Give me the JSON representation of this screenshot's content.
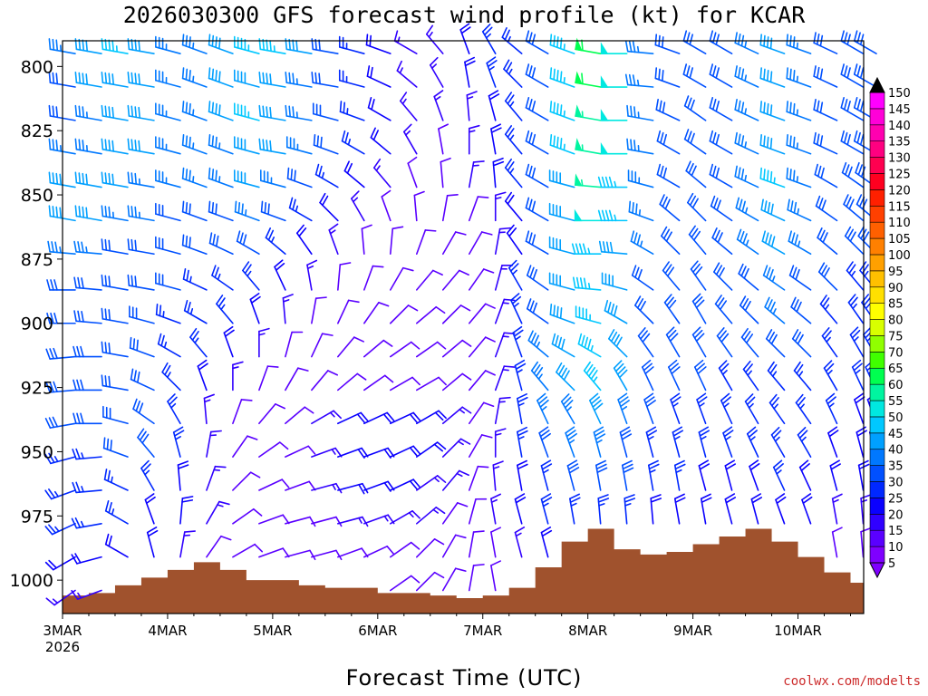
{
  "title": "2026030300 GFS forecast wind profile (kt) for KCAR",
  "credit": "coolwx.com/modelts",
  "chart_data": {
    "type": "wind-barb-profile",
    "title": "2026030300 GFS forecast wind profile (kt) for KCAR",
    "xlabel": "Forecast Time (UTC)",
    "ylabel": "",
    "x_start": "2026-03-03T00:00Z",
    "x_end": "2026-03-10T15:00Z",
    "x_ticks": [
      "3MAR",
      "4MAR",
      "5MAR",
      "6MAR",
      "7MAR",
      "8MAR",
      "9MAR",
      "10MAR"
    ],
    "x_tick_sub": "2026",
    "y_ticks": [
      800,
      825,
      850,
      875,
      900,
      925,
      950,
      975,
      1000
    ],
    "ylim_hPa": [
      1013,
      790
    ],
    "colorbar": {
      "levels": [
        5,
        10,
        15,
        20,
        25,
        30,
        35,
        40,
        45,
        50,
        55,
        60,
        65,
        70,
        75,
        80,
        85,
        90,
        95,
        100,
        105,
        110,
        115,
        120,
        125,
        130,
        135,
        140,
        145,
        150
      ],
      "colors": [
        "#7f00ff",
        "#5a00ff",
        "#3000ff",
        "#0a00ff",
        "#0028ff",
        "#0050ff",
        "#0078ff",
        "#00a0ff",
        "#00c8ff",
        "#00e8e0",
        "#00f5a0",
        "#00ff50",
        "#40ff00",
        "#90ff00",
        "#d8ff00",
        "#ffff00",
        "#ffe000",
        "#ffc000",
        "#ffa000",
        "#ff8000",
        "#ff6000",
        "#ff4000",
        "#ff2000",
        "#ff0020",
        "#ff0050",
        "#ff0080",
        "#ff00b0",
        "#ff00d8",
        "#ff00ff",
        "#000000"
      ]
    },
    "terrain_color": "#a0522d",
    "surface_pressure": {
      "hours": [
        0,
        6,
        12,
        18,
        24,
        30,
        36,
        42,
        48,
        54,
        60,
        66,
        72,
        78,
        84,
        90,
        96,
        102,
        108,
        114,
        120,
        126,
        132,
        138,
        144,
        150,
        156,
        162,
        168,
        174,
        180,
        183
      ],
      "hPa": [
        1006,
        1005,
        1002,
        999,
        996,
        993,
        996,
        1000,
        1000,
        1002,
        1003,
        1003,
        1005,
        1005,
        1006,
        1007,
        1006,
        1003,
        995,
        985,
        980,
        988,
        990,
        989,
        986,
        983,
        980,
        985,
        991,
        997,
        1001,
        1002
      ]
    },
    "wind_levels_hPa": [
      795,
      808,
      821,
      834,
      847,
      860,
      873,
      887,
      900,
      913,
      926,
      939,
      952,
      965,
      978,
      991,
      1004
    ],
    "wind_hours": [
      0,
      6,
      12,
      18,
      24,
      30,
      36,
      42,
      48,
      54,
      60,
      66,
      72,
      78,
      84,
      90,
      96,
      102,
      108,
      114,
      120,
      126,
      132,
      138,
      144,
      150,
      156,
      162,
      168,
      174,
      180,
      183
    ],
    "wind_speed_kt": [
      [
        35,
        40,
        45,
        40,
        35,
        35,
        40,
        45,
        45,
        40,
        30,
        25,
        20,
        15,
        15,
        20,
        25,
        25,
        30,
        45,
        60,
        50,
        35,
        30,
        30,
        30,
        35,
        40,
        35,
        30,
        30,
        30
      ],
      [
        30,
        40,
        40,
        40,
        35,
        35,
        40,
        40,
        40,
        35,
        30,
        25,
        20,
        15,
        15,
        20,
        25,
        25,
        30,
        45,
        60,
        50,
        35,
        30,
        30,
        30,
        35,
        40,
        35,
        30,
        30,
        30
      ],
      [
        30,
        35,
        40,
        40,
        35,
        35,
        40,
        45,
        40,
        35,
        30,
        25,
        20,
        15,
        15,
        15,
        20,
        25,
        30,
        45,
        55,
        50,
        35,
        30,
        30,
        30,
        35,
        40,
        35,
        30,
        30,
        30
      ],
      [
        35,
        35,
        40,
        40,
        35,
        35,
        35,
        40,
        40,
        35,
        30,
        25,
        20,
        15,
        10,
        15,
        20,
        25,
        30,
        45,
        55,
        50,
        35,
        30,
        30,
        30,
        35,
        40,
        35,
        30,
        30,
        30
      ],
      [
        40,
        40,
        40,
        35,
        35,
        35,
        35,
        40,
        35,
        30,
        25,
        20,
        15,
        10,
        10,
        15,
        20,
        25,
        30,
        40,
        55,
        45,
        35,
        30,
        30,
        30,
        35,
        45,
        35,
        30,
        30,
        30
      ],
      [
        40,
        40,
        35,
        35,
        30,
        30,
        30,
        35,
        30,
        25,
        20,
        15,
        10,
        10,
        10,
        10,
        15,
        20,
        30,
        40,
        50,
        45,
        35,
        30,
        30,
        30,
        35,
        40,
        35,
        30,
        30,
        30
      ],
      [
        35,
        35,
        30,
        30,
        30,
        30,
        30,
        30,
        25,
        20,
        15,
        10,
        10,
        10,
        10,
        10,
        15,
        20,
        30,
        40,
        45,
        40,
        35,
        30,
        30,
        30,
        35,
        40,
        35,
        30,
        30,
        30
      ],
      [
        30,
        30,
        30,
        30,
        30,
        25,
        25,
        25,
        20,
        15,
        10,
        10,
        10,
        10,
        10,
        10,
        15,
        25,
        30,
        40,
        45,
        40,
        30,
        30,
        30,
        30,
        30,
        35,
        30,
        30,
        25,
        25
      ],
      [
        30,
        30,
        30,
        30,
        25,
        25,
        25,
        20,
        15,
        10,
        10,
        10,
        10,
        10,
        10,
        10,
        15,
        25,
        30,
        40,
        45,
        40,
        30,
        30,
        30,
        30,
        30,
        35,
        30,
        25,
        25,
        25
      ],
      [
        30,
        30,
        30,
        30,
        25,
        25,
        20,
        15,
        10,
        10,
        10,
        10,
        10,
        10,
        10,
        10,
        15,
        25,
        35,
        40,
        45,
        40,
        30,
        30,
        30,
        30,
        30,
        30,
        30,
        25,
        25,
        25
      ],
      [
        30,
        30,
        30,
        30,
        25,
        20,
        15,
        10,
        10,
        10,
        10,
        10,
        10,
        10,
        10,
        10,
        15,
        25,
        35,
        40,
        45,
        40,
        30,
        30,
        30,
        25,
        25,
        25,
        25,
        25,
        25,
        25
      ],
      [
        30,
        30,
        30,
        30,
        25,
        15,
        10,
        10,
        10,
        15,
        20,
        20,
        20,
        20,
        15,
        10,
        15,
        25,
        35,
        35,
        40,
        35,
        30,
        25,
        25,
        25,
        25,
        25,
        25,
        25,
        20,
        20
      ],
      [
        25,
        25,
        30,
        30,
        25,
        15,
        10,
        10,
        10,
        15,
        20,
        20,
        20,
        20,
        15,
        10,
        15,
        25,
        30,
        35,
        35,
        30,
        25,
        25,
        25,
        25,
        25,
        25,
        25,
        20,
        20,
        20
      ],
      [
        25,
        25,
        25,
        25,
        20,
        15,
        10,
        10,
        10,
        15,
        20,
        20,
        20,
        15,
        15,
        10,
        15,
        20,
        25,
        30,
        30,
        30,
        25,
        25,
        20,
        20,
        20,
        25,
        20,
        20,
        20,
        15
      ],
      [
        25,
        25,
        25,
        20,
        20,
        15,
        10,
        10,
        10,
        10,
        15,
        15,
        15,
        15,
        10,
        10,
        15,
        20,
        25,
        25,
        25,
        25,
        20,
        20,
        20,
        20,
        20,
        20,
        20,
        15,
        15,
        15
      ],
      [
        20,
        20,
        20,
        20,
        15,
        10,
        10,
        10,
        10,
        10,
        10,
        10,
        10,
        10,
        10,
        10,
        10,
        15,
        20,
        20,
        20,
        20,
        15,
        15,
        15,
        15,
        15,
        15,
        15,
        10,
        10,
        10
      ],
      [
        15,
        15,
        15,
        15,
        10,
        10,
        10,
        10,
        10,
        10,
        10,
        10,
        10,
        10,
        10,
        10,
        10,
        10,
        15,
        15,
        15,
        15,
        10,
        10,
        10,
        10,
        10,
        10,
        10,
        10,
        10,
        10
      ]
    ],
    "wind_dir_deg": [
      [
        280,
        280,
        280,
        280,
        285,
        290,
        290,
        285,
        280,
        280,
        280,
        285,
        290,
        300,
        320,
        340,
        330,
        310,
        300,
        290,
        280,
        270,
        275,
        290,
        300,
        300,
        295,
        290,
        290,
        295,
        300,
        300
      ],
      [
        280,
        280,
        280,
        280,
        285,
        290,
        290,
        285,
        280,
        280,
        280,
        285,
        295,
        310,
        330,
        350,
        340,
        315,
        300,
        290,
        280,
        270,
        275,
        290,
        300,
        300,
        295,
        290,
        290,
        295,
        300,
        300
      ],
      [
        280,
        280,
        280,
        280,
        285,
        290,
        290,
        285,
        280,
        280,
        285,
        290,
        300,
        320,
        340,
        355,
        345,
        320,
        300,
        290,
        280,
        270,
        280,
        295,
        305,
        300,
        295,
        290,
        290,
        295,
        300,
        300
      ],
      [
        280,
        280,
        280,
        280,
        285,
        290,
        290,
        285,
        280,
        285,
        290,
        300,
        310,
        330,
        350,
        0,
        350,
        320,
        300,
        290,
        280,
        270,
        280,
        300,
        305,
        300,
        295,
        290,
        290,
        295,
        300,
        300
      ],
      [
        280,
        280,
        280,
        280,
        285,
        290,
        290,
        285,
        285,
        290,
        300,
        310,
        320,
        340,
        355,
        10,
        355,
        320,
        300,
        285,
        275,
        270,
        285,
        300,
        310,
        300,
        295,
        290,
        290,
        300,
        305,
        305
      ],
      [
        280,
        280,
        280,
        280,
        285,
        290,
        290,
        290,
        290,
        300,
        315,
        330,
        340,
        355,
        10,
        20,
        0,
        320,
        300,
        285,
        270,
        270,
        290,
        310,
        315,
        305,
        300,
        295,
        295,
        305,
        310,
        310
      ],
      [
        275,
        275,
        280,
        280,
        285,
        290,
        295,
        300,
        310,
        325,
        340,
        355,
        5,
        20,
        30,
        30,
        10,
        325,
        300,
        285,
        270,
        275,
        300,
        315,
        320,
        310,
        305,
        300,
        300,
        310,
        315,
        315
      ],
      [
        270,
        275,
        280,
        280,
        285,
        295,
        305,
        320,
        335,
        350,
        5,
        20,
        30,
        40,
        40,
        35,
        15,
        330,
        305,
        285,
        275,
        285,
        305,
        320,
        325,
        315,
        310,
        305,
        305,
        315,
        320,
        320
      ],
      [
        270,
        275,
        280,
        285,
        290,
        300,
        320,
        340,
        355,
        10,
        25,
        35,
        45,
        50,
        45,
        40,
        20,
        335,
        305,
        290,
        285,
        300,
        315,
        325,
        330,
        320,
        315,
        310,
        310,
        320,
        325,
        325
      ],
      [
        265,
        270,
        280,
        290,
        300,
        320,
        340,
        0,
        15,
        25,
        40,
        50,
        55,
        55,
        50,
        40,
        20,
        340,
        310,
        300,
        300,
        315,
        325,
        330,
        330,
        325,
        320,
        315,
        315,
        325,
        330,
        330
      ],
      [
        265,
        270,
        280,
        295,
        315,
        340,
        0,
        20,
        30,
        40,
        50,
        55,
        60,
        60,
        50,
        40,
        20,
        345,
        320,
        315,
        320,
        330,
        335,
        335,
        335,
        330,
        325,
        320,
        320,
        330,
        335,
        335
      ],
      [
        260,
        270,
        285,
        305,
        330,
        355,
        20,
        40,
        50,
        60,
        65,
        65,
        65,
        60,
        50,
        35,
        10,
        350,
        335,
        330,
        335,
        340,
        340,
        340,
        340,
        335,
        330,
        325,
        325,
        335,
        340,
        340
      ],
      [
        255,
        265,
        290,
        320,
        345,
        10,
        35,
        55,
        65,
        70,
        70,
        70,
        65,
        55,
        45,
        30,
        0,
        350,
        340,
        340,
        345,
        345,
        345,
        345,
        345,
        340,
        335,
        330,
        330,
        340,
        345,
        345
      ],
      [
        250,
        265,
        295,
        330,
        355,
        20,
        45,
        65,
        70,
        75,
        75,
        70,
        65,
        55,
        40,
        20,
        355,
        350,
        345,
        345,
        350,
        350,
        350,
        350,
        345,
        345,
        340,
        335,
        335,
        345,
        350,
        350
      ],
      [
        245,
        260,
        300,
        340,
        5,
        30,
        55,
        70,
        75,
        75,
        75,
        70,
        60,
        50,
        35,
        15,
        350,
        345,
        345,
        350,
        355,
        355,
        355,
        350,
        350,
        345,
        345,
        340,
        340,
        350,
        355,
        355
      ],
      [
        240,
        255,
        300,
        345,
        10,
        35,
        60,
        70,
        75,
        75,
        70,
        65,
        55,
        45,
        30,
        10,
        350,
        345,
        345,
        350,
        355,
        355,
        355,
        350,
        350,
        345,
        345,
        340,
        340,
        350,
        355,
        355
      ],
      [
        235,
        250,
        300,
        345,
        10,
        35,
        60,
        70,
        75,
        75,
        70,
        65,
        55,
        45,
        30,
        10,
        350,
        345,
        345,
        350,
        355,
        355,
        355,
        350,
        350,
        345,
        345,
        340,
        340,
        350,
        355,
        355
      ]
    ]
  }
}
